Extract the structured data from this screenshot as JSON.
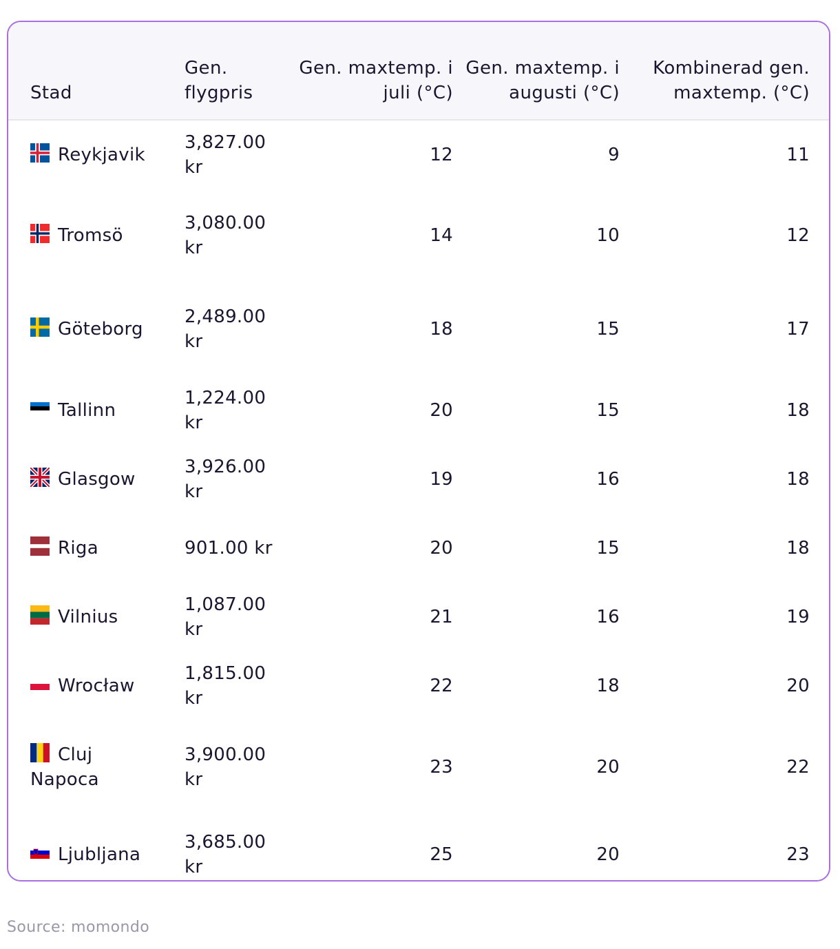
{
  "table": {
    "headers": {
      "city": "Stad",
      "price": "Gen. flygpris",
      "july": "Gen. maxtemp. i juli (°C)",
      "august": "Gen. maxtemp. i augusti (°C)",
      "combined": "Kombinerad gen. maxtemp. (°C)"
    },
    "rows": [
      {
        "flag": "iceland-flag-icon",
        "city": "Reykjavik",
        "price": "3,827.00 kr",
        "july": "12",
        "august": "9",
        "combined": "11"
      },
      {
        "flag": "norway-flag-icon",
        "city": "Tromsö",
        "price": "3,080.00 kr",
        "july": "14",
        "august": "10",
        "combined": "12"
      },
      {
        "flag": "sweden-flag-icon",
        "city": "Göteborg",
        "price": "2,489.00 kr",
        "july": "18",
        "august": "15",
        "combined": "17"
      },
      {
        "flag": "estonia-flag-icon",
        "city": "Tallinn",
        "price": "1,224.00 kr",
        "july": "20",
        "august": "15",
        "combined": "18"
      },
      {
        "flag": "uk-flag-icon",
        "city": "Glasgow",
        "price": "3,926.00 kr",
        "july": "19",
        "august": "16",
        "combined": "18"
      },
      {
        "flag": "latvia-flag-icon",
        "city": "Riga",
        "price": "901.00 kr",
        "july": "20",
        "august": "15",
        "combined": "18"
      },
      {
        "flag": "lithuania-flag-icon",
        "city": "Vilnius",
        "price": "1,087.00 kr",
        "july": "21",
        "august": "16",
        "combined": "19"
      },
      {
        "flag": "poland-flag-icon",
        "city": "Wrocław",
        "price": "1,815.00 kr",
        "july": "22",
        "august": "18",
        "combined": "20"
      },
      {
        "flag": "romania-flag-icon",
        "city": "Cluj Napoca",
        "price": "3,900.00 kr",
        "july": "23",
        "august": "20",
        "combined": "22"
      },
      {
        "flag": "slovenia-flag-icon",
        "city": "Ljubljana",
        "price": "3,685.00 kr",
        "july": "25",
        "august": "20",
        "combined": "23"
      }
    ]
  },
  "source": "Source: momondo",
  "colors": {
    "border": "#a96fe0",
    "header_bg": "#f7f7fb",
    "source_text": "#9a97a8"
  }
}
